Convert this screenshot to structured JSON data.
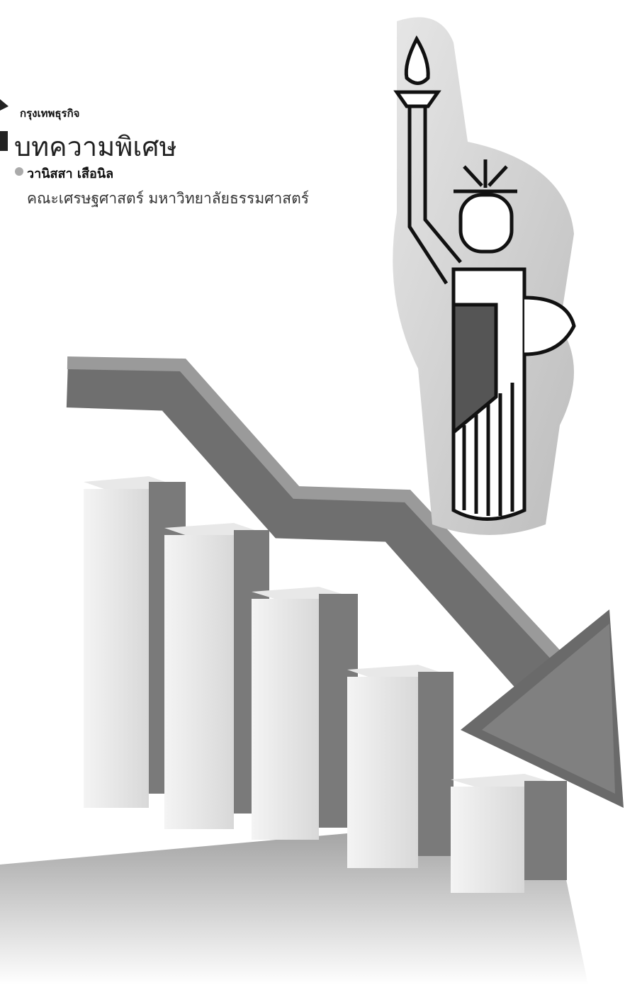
{
  "header": {
    "brand": "กรุงเทพธุรกิจ",
    "section": "บทความพิเศษ"
  },
  "byline": {
    "author": "วานิสสา เสือนิล",
    "affiliation": "คณะเศรษฐศาสตร์ มหาวิทยาลัยธรรมศาสตร์"
  }
}
